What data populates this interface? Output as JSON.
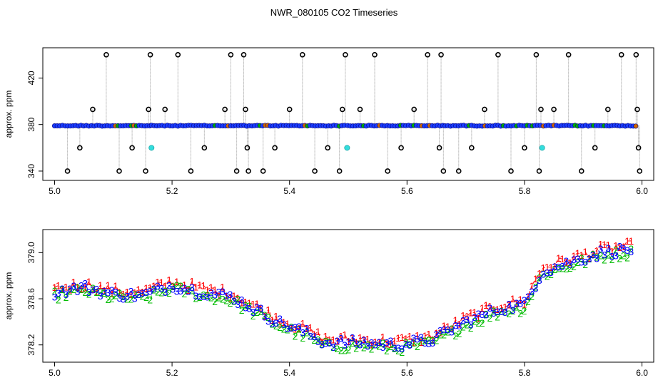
{
  "title": "NWR_080105  CO2 Timeseries",
  "chart_data": [
    {
      "type": "scatter",
      "ylabel": "approx. ppm",
      "xlabel": "",
      "xlim": [
        4.98,
        6.02
      ],
      "ylim": [
        332,
        446
      ],
      "xticks": [
        5.0,
        5.2,
        5.4,
        5.6,
        5.8,
        6.0
      ],
      "xtick_labels": [
        "5.0",
        "5.2",
        "5.4",
        "5.6",
        "5.8",
        "6.0"
      ],
      "yticks": [
        340,
        380,
        420
      ],
      "ytick_labels": [
        "340",
        "380",
        "420"
      ],
      "baseline_ppm": 379,
      "segments": [
        [
          5.0,
          5.163
        ],
        [
          5.165,
          5.497
        ],
        [
          5.499,
          5.663
        ],
        [
          5.665,
          5.83
        ],
        [
          5.832,
          5.99
        ]
      ],
      "cal_points": [
        [
          5.165,
          360
        ],
        [
          5.498,
          360
        ],
        [
          5.83,
          360
        ]
      ],
      "outliers": [
        [
          5.022,
          340
        ],
        [
          5.043,
          360
        ],
        [
          5.065,
          393
        ],
        [
          5.088,
          440
        ],
        [
          5.11,
          340
        ],
        [
          5.132,
          360
        ],
        [
          5.155,
          340
        ],
        [
          5.16,
          393
        ],
        [
          5.163,
          440
        ],
        [
          5.188,
          393
        ],
        [
          5.21,
          440
        ],
        [
          5.232,
          340
        ],
        [
          5.255,
          360
        ],
        [
          5.29,
          393
        ],
        [
          5.3,
          440
        ],
        [
          5.31,
          340
        ],
        [
          5.322,
          440
        ],
        [
          5.325,
          393
        ],
        [
          5.328,
          360
        ],
        [
          5.33,
          340
        ],
        [
          5.355,
          340
        ],
        [
          5.375,
          360
        ],
        [
          5.4,
          393
        ],
        [
          5.422,
          440
        ],
        [
          5.443,
          340
        ],
        [
          5.465,
          360
        ],
        [
          5.485,
          340
        ],
        [
          5.49,
          393
        ],
        [
          5.495,
          440
        ],
        [
          5.52,
          393
        ],
        [
          5.545,
          440
        ],
        [
          5.567,
          340
        ],
        [
          5.59,
          360
        ],
        [
          5.612,
          393
        ],
        [
          5.635,
          440
        ],
        [
          5.655,
          360
        ],
        [
          5.658,
          440
        ],
        [
          5.662,
          340
        ],
        [
          5.688,
          340
        ],
        [
          5.71,
          360
        ],
        [
          5.732,
          393
        ],
        [
          5.755,
          440
        ],
        [
          5.777,
          340
        ],
        [
          5.8,
          360
        ],
        [
          5.82,
          440
        ],
        [
          5.825,
          340
        ],
        [
          5.828,
          393
        ],
        [
          5.85,
          393
        ],
        [
          5.875,
          440
        ],
        [
          5.897,
          340
        ],
        [
          5.92,
          360
        ],
        [
          5.942,
          393
        ],
        [
          5.965,
          440
        ],
        [
          5.99,
          440
        ],
        [
          5.992,
          393
        ],
        [
          5.994,
          360
        ],
        [
          5.996,
          340
        ]
      ]
    },
    {
      "type": "line",
      "ylabel": "approx. ppm",
      "xlabel": "",
      "xlim": [
        4.98,
        6.02
      ],
      "ylim": [
        378.05,
        379.2
      ],
      "xticks": [
        5.0,
        5.2,
        5.4,
        5.6,
        5.8,
        6.0
      ],
      "xtick_labels": [
        "5.0",
        "5.2",
        "5.4",
        "5.6",
        "5.8",
        "6.0"
      ],
      "yticks": [
        378.2,
        378.6,
        379.0
      ],
      "ytick_labels": [
        "378.2",
        "378.6",
        "379.0"
      ],
      "trend": {
        "x": [
          5.0,
          5.05,
          5.1,
          5.15,
          5.2,
          5.25,
          5.3,
          5.33,
          5.38,
          5.43,
          5.46,
          5.52,
          5.58,
          5.64,
          5.7,
          5.76,
          5.8,
          5.83,
          5.88,
          5.93,
          5.98
        ],
        "y": [
          378.66,
          378.7,
          378.64,
          378.63,
          378.72,
          378.66,
          378.62,
          378.54,
          378.4,
          378.3,
          378.22,
          378.22,
          378.2,
          378.24,
          378.4,
          378.52,
          378.55,
          378.84,
          378.92,
          379.0,
          379.03
        ]
      },
      "series": [
        {
          "name": "1",
          "color": "#ff0000",
          "offset": 0.03
        },
        {
          "name": "2",
          "color": "#00bb00",
          "offset": -0.03
        },
        {
          "name": "3",
          "color": "#0000ff",
          "offset": 0.0
        }
      ]
    }
  ]
}
